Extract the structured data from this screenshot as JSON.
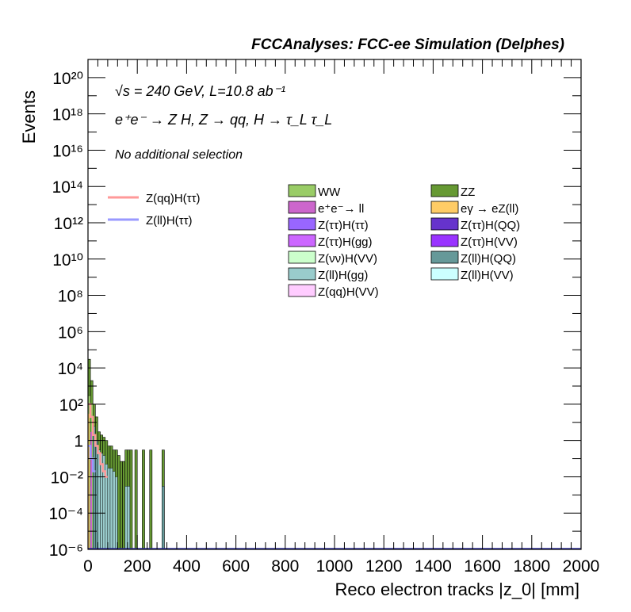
{
  "chart_data": {
    "type": "histogram",
    "title": "FCCAnalyses: FCC-ee Simulation (Delphes)",
    "annotations": {
      "line1": "√s = 240 GeV, L=10.8 ab⁻¹",
      "line2": "e⁺e⁻ → Z H, Z → qq, H → τ_L τ_L",
      "line3": "No additional selection"
    },
    "xlabel": "Reco electron tracks |z_0| [mm]",
    "ylabel": "Events",
    "x_scale": "linear",
    "y_scale": "log",
    "xlim": [
      0,
      2000
    ],
    "ylim": [
      1e-06,
      1e+21
    ],
    "x_ticks": [
      0,
      200,
      400,
      600,
      800,
      1000,
      1200,
      1400,
      1600,
      1800,
      2000
    ],
    "x_tick_labels": [
      "0",
      "200",
      "400",
      "600",
      "800",
      "1000",
      "1200",
      "1400",
      "1600",
      "1800",
      "2000"
    ],
    "y_tick_exponents": [
      -6,
      -4,
      -2,
      0,
      2,
      4,
      6,
      8,
      10,
      12,
      14,
      16,
      18,
      20
    ],
    "y_tick_labels": [
      "10⁻⁶",
      "10⁻⁴",
      "10⁻²",
      "1",
      "10²",
      "10⁴",
      "10⁶",
      "10⁸",
      "10¹⁰",
      "10¹²",
      "10¹⁴",
      "10¹⁶",
      "10¹⁸",
      "10²⁰"
    ],
    "bin_width": 10,
    "legend_lines": [
      {
        "name": "Z(qq)H(ττ)",
        "color": "#ff9999"
      },
      {
        "name": "Z(ll)H(ττ)",
        "color": "#9999ff"
      }
    ],
    "legend_fills": [
      {
        "name": "WW",
        "color": "#99cc66"
      },
      {
        "name": "ZZ",
        "color": "#669933"
      },
      {
        "name": "e⁺e⁻→ ll",
        "color": "#cc66cc"
      },
      {
        "name": "eγ → eZ(ll)",
        "color": "#ffcc66"
      },
      {
        "name": "Z(ττ)H(ττ)",
        "color": "#9966ff"
      },
      {
        "name": "Z(ττ)H(QQ)",
        "color": "#6633cc"
      },
      {
        "name": "Z(ττ)H(gg)",
        "color": "#cc66ff"
      },
      {
        "name": "Z(ττ)H(VV)",
        "color": "#9933ff"
      },
      {
        "name": "Z(νν)H(VV)",
        "color": "#ccffcc"
      },
      {
        "name": "Z(ll)H(QQ)",
        "color": "#669999"
      },
      {
        "name": "Z(ll)H(gg)",
        "color": "#99cccc"
      },
      {
        "name": "Z(ll)H(VV)",
        "color": "#ccffff"
      },
      {
        "name": "Z(qq)H(VV)",
        "color": "#ffccff"
      }
    ],
    "stack_total": [
      {
        "x": 0,
        "y": 30000
      },
      {
        "x": 10,
        "y": 2000
      },
      {
        "x": 20,
        "y": 100
      },
      {
        "x": 30,
        "y": 20
      },
      {
        "x": 40,
        "y": 3
      },
      {
        "x": 50,
        "y": 2
      },
      {
        "x": 60,
        "y": 1.5
      },
      {
        "x": 70,
        "y": 1
      },
      {
        "x": 80,
        "y": 0.5
      },
      {
        "x": 90,
        "y": 0.5
      },
      {
        "x": 100,
        "y": 0.3
      },
      {
        "x": 110,
        "y": 0.3
      },
      {
        "x": 120,
        "y": 0.15
      },
      {
        "x": 130,
        "y": 0.07
      },
      {
        "x": 140,
        "y": 0.07
      },
      {
        "x": 150,
        "y": 0.3
      },
      {
        "x": 160,
        "y": 0.3
      },
      {
        "x": 170,
        "y": 0.3
      },
      {
        "x": 190,
        "y": 0.3
      },
      {
        "x": 220,
        "y": 0.3
      },
      {
        "x": 250,
        "y": 0.3
      },
      {
        "x": 300,
        "y": 0.3
      }
    ],
    "lower_fill": [
      {
        "x": 0,
        "y": 300,
        "color": "#99cc66"
      },
      {
        "x": 10,
        "y": 100,
        "color": "#99cc66"
      },
      {
        "x": 20,
        "y": 6,
        "color": "#669999"
      },
      {
        "x": 30,
        "y": 1,
        "color": "#669999"
      },
      {
        "x": 40,
        "y": 0.3,
        "color": "#99cccc"
      },
      {
        "x": 50,
        "y": 0.2,
        "color": "#99cccc"
      },
      {
        "x": 60,
        "y": 0.15,
        "color": "#99cccc"
      },
      {
        "x": 70,
        "y": 0.05,
        "color": "#99cccc"
      },
      {
        "x": 80,
        "y": 0.03,
        "color": "#99cccc"
      },
      {
        "x": 90,
        "y": 0.03,
        "color": "#99cccc"
      },
      {
        "x": 100,
        "y": 0.02,
        "color": "#99cccc"
      },
      {
        "x": 110,
        "y": 0.01,
        "color": "#99cccc"
      },
      {
        "x": 150,
        "y": 0.003,
        "color": "#99cccc"
      },
      {
        "x": 160,
        "y": 0.003,
        "color": "#99cccc"
      },
      {
        "x": 300,
        "y": 0.003,
        "color": "#669999"
      }
    ],
    "line_series": [
      {
        "name": "Z(qq)H(ττ)",
        "color": "#ff9999",
        "points": [
          [
            0,
            100
          ],
          [
            10,
            20
          ],
          [
            20,
            2
          ],
          [
            30,
            0.5
          ],
          [
            40,
            0.2
          ],
          [
            50,
            0.05
          ],
          [
            60,
            0.02
          ],
          [
            70,
            0.01
          ]
        ]
      },
      {
        "name": "Z(ll)H(ττ)",
        "color": "#9999ff",
        "points": [
          [
            0,
            0.5
          ],
          [
            10,
            0.1
          ],
          [
            20,
            0.02
          ]
        ]
      }
    ]
  }
}
